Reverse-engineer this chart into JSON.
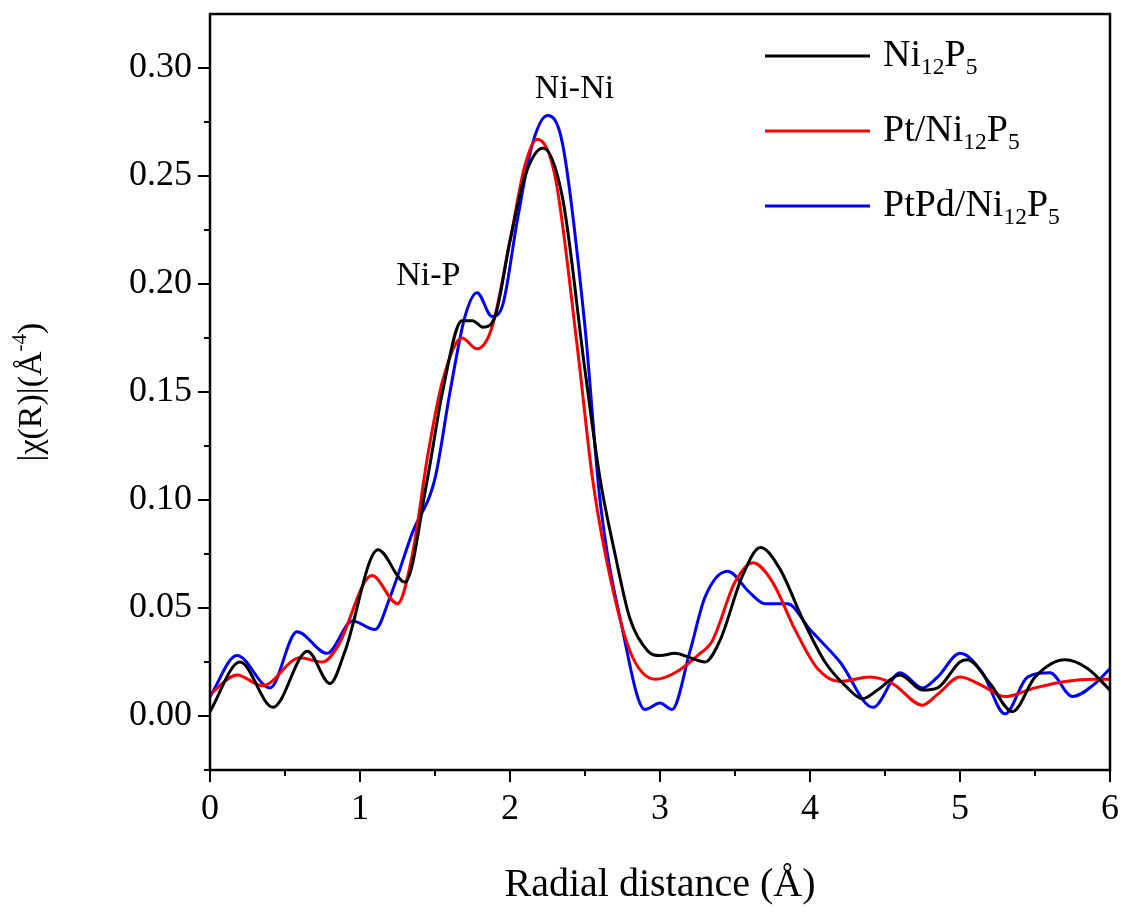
{
  "chart_data": {
    "type": "line",
    "xlabel": "Radial distance (Å)",
    "ylabel": "|χ(R)|(Å$^{-4}$)",
    "xlim": [
      0,
      6
    ],
    "ylim": [
      -0.025,
      0.325
    ],
    "xticks": [
      0,
      {
        "value": 0.5,
        "label": null
      },
      1,
      {
        "value": 1.5,
        "label": null
      },
      2,
      {
        "value": 2.5,
        "label": null
      },
      3,
      {
        "value": 3.5,
        "label": null
      },
      4,
      {
        "value": 4.5,
        "label": null
      },
      5,
      {
        "value": 5.5,
        "label": null
      },
      6
    ],
    "yticks": [
      {
        "value": -0.025,
        "label": null
      },
      {
        "value": 0,
        "label": "0.00"
      },
      {
        "value": 0.025,
        "label": null
      },
      {
        "value": 0.05,
        "label": "0.05"
      },
      {
        "value": 0.075,
        "label": null
      },
      {
        "value": 0.1,
        "label": "0.10"
      },
      {
        "value": 0.125,
        "label": null
      },
      {
        "value": 0.15,
        "label": "0.15"
      },
      {
        "value": 0.175,
        "label": null
      },
      {
        "value": 0.2,
        "label": "0.20"
      },
      {
        "value": 0.225,
        "label": null
      },
      {
        "value": 0.25,
        "label": "0.25"
      },
      {
        "value": 0.275,
        "label": null
      },
      {
        "value": 0.3,
        "label": "0.30"
      }
    ],
    "legend": "top right",
    "grid": false,
    "annotations": [
      "Ni-P",
      "Ni-Ni"
    ],
    "series": [
      {
        "name": "Ni$_{12}$P$_{5}$",
        "color": "#000000",
        "x": [
          0,
          0.2,
          0.42,
          0.65,
          0.8,
          0.9,
          1.12,
          1.3,
          1.45,
          1.55,
          1.68,
          1.75,
          1.82,
          1.9,
          2.0,
          2.1,
          2.22,
          2.35,
          2.5,
          2.6,
          2.7,
          2.8,
          2.92,
          3.0,
          3.1,
          3.2,
          3.3,
          3.4,
          3.55,
          3.67,
          3.8,
          3.95,
          4.1,
          4.25,
          4.35,
          4.45,
          4.6,
          4.75,
          4.85,
          5.0,
          5.05,
          5.2,
          5.35,
          5.5,
          5.7,
          5.85,
          6.0
        ],
        "values": [
          0.002,
          0.025,
          0.004,
          0.03,
          0.015,
          0.03,
          0.077,
          0.062,
          0.11,
          0.15,
          0.183,
          0.183,
          0.18,
          0.185,
          0.22,
          0.25,
          0.263,
          0.24,
          0.16,
          0.11,
          0.075,
          0.045,
          0.03,
          0.028,
          0.029,
          0.027,
          0.025,
          0.035,
          0.065,
          0.078,
          0.068,
          0.045,
          0.025,
          0.013,
          0.008,
          0.012,
          0.019,
          0.012,
          0.013,
          0.025,
          0.026,
          0.015,
          0.002,
          0.018,
          0.026,
          0.022,
          0.012
        ]
      },
      {
        "name": "Pt/Ni$_{12}$P$_{5}$",
        "color": "#ff0000",
        "x": [
          0,
          0.18,
          0.35,
          0.6,
          0.75,
          0.85,
          1.08,
          1.25,
          1.35,
          1.45,
          1.55,
          1.68,
          1.78,
          1.88,
          2.0,
          2.1,
          2.18,
          2.3,
          2.45,
          2.55,
          2.65,
          2.8,
          2.97,
          3.1,
          3.25,
          3.35,
          3.5,
          3.62,
          3.75,
          3.9,
          4.05,
          4.2,
          4.4,
          4.55,
          4.75,
          4.85,
          5.0,
          5.15,
          5.3,
          5.5,
          5.7,
          5.9,
          6.0
        ],
        "values": [
          0.01,
          0.019,
          0.014,
          0.027,
          0.025,
          0.032,
          0.065,
          0.052,
          0.075,
          0.12,
          0.155,
          0.175,
          0.17,
          0.18,
          0.22,
          0.255,
          0.267,
          0.25,
          0.17,
          0.11,
          0.07,
          0.03,
          0.017,
          0.02,
          0.028,
          0.035,
          0.062,
          0.071,
          0.062,
          0.04,
          0.022,
          0.016,
          0.018,
          0.015,
          0.005,
          0.01,
          0.018,
          0.014,
          0.009,
          0.013,
          0.016,
          0.017,
          0.017
        ]
      },
      {
        "name": "PtPd/Ni$_{12}$P$_{5}$",
        "color": "#0000ff",
        "x": [
          0,
          0.18,
          0.4,
          0.58,
          0.78,
          0.95,
          1.1,
          1.2,
          1.35,
          1.5,
          1.6,
          1.7,
          1.78,
          1.88,
          1.95,
          2.05,
          2.15,
          2.25,
          2.35,
          2.5,
          2.6,
          2.75,
          2.9,
          3.0,
          3.08,
          3.2,
          3.3,
          3.45,
          3.6,
          3.7,
          3.85,
          4.0,
          4.2,
          4.42,
          4.6,
          4.75,
          4.85,
          5.0,
          5.15,
          5.3,
          5.45,
          5.6,
          5.75,
          5.9,
          6.0
        ],
        "values": [
          0.009,
          0.028,
          0.013,
          0.039,
          0.029,
          0.044,
          0.04,
          0.055,
          0.085,
          0.11,
          0.15,
          0.185,
          0.196,
          0.185,
          0.19,
          0.23,
          0.265,
          0.278,
          0.265,
          0.18,
          0.1,
          0.04,
          0.003,
          0.006,
          0.003,
          0.03,
          0.055,
          0.067,
          0.057,
          0.052,
          0.052,
          0.04,
          0.025,
          0.004,
          0.02,
          0.013,
          0.018,
          0.029,
          0.02,
          0.001,
          0.018,
          0.02,
          0.009,
          0.015,
          0.022
        ]
      }
    ]
  }
}
